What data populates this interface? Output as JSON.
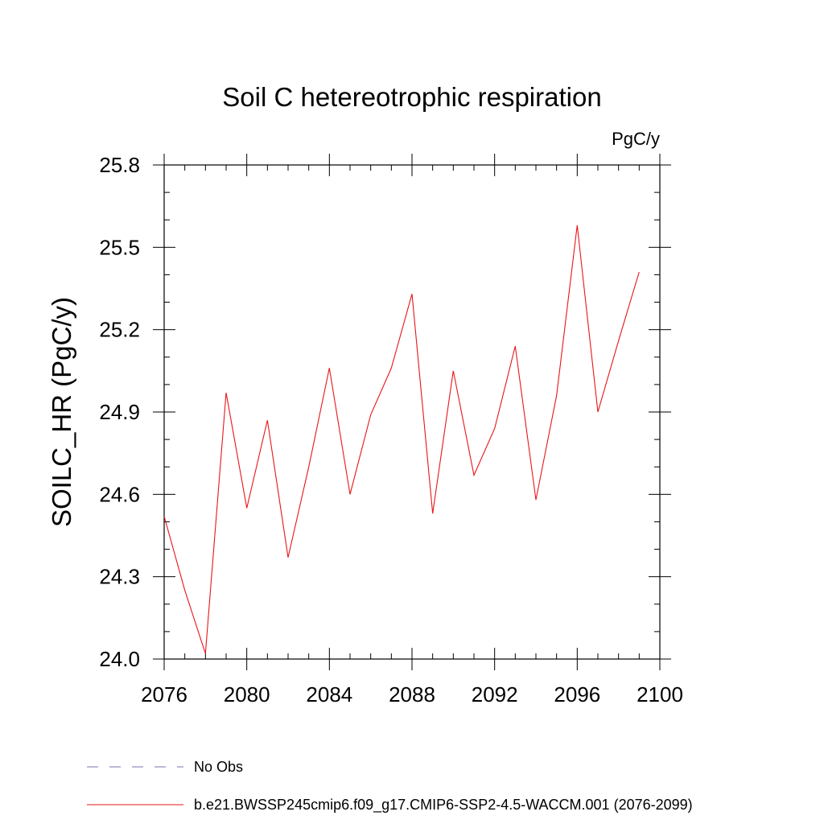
{
  "chart_data": {
    "type": "line",
    "title": "Soil C hetereotrophic respiration",
    "units": "PgC/y",
    "xlabel": "",
    "ylabel": "SOILC_HR  (PgC/y)",
    "xlim": [
      2076,
      2100
    ],
    "ylim": [
      24.0,
      25.8
    ],
    "xticks": [
      "2076",
      "2080",
      "2084",
      "2088",
      "2092",
      "2096",
      "2100"
    ],
    "yticks": [
      "24.0",
      "24.3",
      "24.6",
      "24.9",
      "25.2",
      "25.5",
      "25.8"
    ],
    "grid": false,
    "legend_position": "bottom",
    "series": [
      {
        "name": "b.e21.BWSSP245cmip6.f09_g17.CMIP6-SSP2-4.5-WACCM.001 (2076-2099)",
        "color": "#e8151a",
        "dash": "solid",
        "x": [
          2076,
          2077,
          2078,
          2079,
          2080,
          2081,
          2082,
          2083,
          2084,
          2085,
          2086,
          2087,
          2088,
          2089,
          2090,
          2091,
          2092,
          2093,
          2094,
          2095,
          2096,
          2097,
          2098,
          2099
        ],
        "values": [
          24.52,
          24.25,
          24.02,
          24.97,
          24.55,
          24.87,
          24.37,
          24.7,
          25.06,
          24.6,
          24.89,
          25.06,
          25.33,
          24.53,
          25.05,
          24.67,
          24.84,
          25.14,
          24.58,
          24.96,
          25.58,
          24.9,
          25.16,
          25.41
        ]
      }
    ],
    "legend": [
      {
        "label": "No Obs",
        "color": "#7a6fb0",
        "dash": "dashed"
      },
      {
        "label": "b.e21.BWSSP245cmip6.f09_g17.CMIP6-SSP2-4.5-WACCM.001 (2076-2099)",
        "color": "#e8151a",
        "dash": "solid"
      }
    ]
  }
}
